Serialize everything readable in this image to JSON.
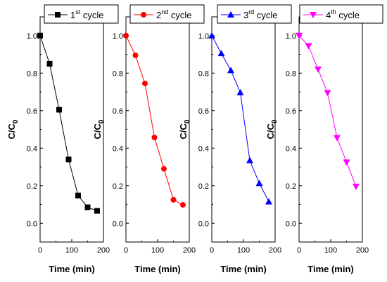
{
  "chart_data": [
    {
      "type": "line",
      "legend": {
        "label": "1",
        "sup": "st",
        "suffix": " cycle"
      },
      "color": "#000000",
      "marker": "square",
      "x": [
        0,
        30,
        60,
        90,
        120,
        150,
        180
      ],
      "y": [
        1.0,
        0.85,
        0.605,
        0.34,
        0.148,
        0.085,
        0.066
      ],
      "xlabel": "Time (min)",
      "ylabel": {
        "main": "C/C",
        "sub": "0"
      },
      "xlim": [
        0,
        200
      ],
      "ylim": [
        -0.1,
        1.1
      ],
      "xticks": [
        "0",
        "100",
        "200"
      ],
      "yticks": [
        "0.0",
        "0.2",
        "0.4",
        "0.6",
        "0.8",
        "1.0"
      ],
      "grid": false,
      "legend_position": "top"
    },
    {
      "type": "line",
      "legend": {
        "label": "2",
        "sup": "nd",
        "suffix": " cycle"
      },
      "color": "#ff0000",
      "marker": "circle",
      "x": [
        0,
        30,
        60,
        90,
        120,
        150,
        180
      ],
      "y": [
        1.0,
        0.895,
        0.745,
        0.457,
        0.29,
        0.125,
        0.098
      ],
      "xlabel": "Time (min)",
      "ylabel": {
        "main": "C/C",
        "sub": "0"
      },
      "xlim": [
        0,
        200
      ],
      "ylim": [
        -0.1,
        1.1
      ],
      "xticks": [
        "0",
        "100",
        "200"
      ],
      "yticks": [
        "0.0",
        "0.2",
        "0.4",
        "0.6",
        "0.8",
        "1.0"
      ],
      "grid": false,
      "legend_position": "top"
    },
    {
      "type": "line",
      "legend": {
        "label": "3",
        "sup": "rd",
        "suffix": " cycle"
      },
      "color": "#0000ff",
      "marker": "triangle-up",
      "x": [
        0,
        30,
        60,
        90,
        120,
        150,
        180
      ],
      "y": [
        1.0,
        0.905,
        0.815,
        0.697,
        0.335,
        0.213,
        0.115
      ],
      "xlabel": "Time (min)",
      "ylabel": {
        "main": "C/C",
        "sub": "0"
      },
      "xlim": [
        0,
        200
      ],
      "ylim": [
        -0.1,
        1.1
      ],
      "xticks": [
        "0",
        "100",
        "200"
      ],
      "yticks": [
        "0.0",
        "0.2",
        "0.4",
        "0.6",
        "0.8",
        "1.0"
      ],
      "grid": false,
      "legend_position": "top"
    },
    {
      "type": "line",
      "legend": {
        "label": "4",
        "sup": "th",
        "suffix": " cycle"
      },
      "color": "#ff00ff",
      "marker": "triangle-down",
      "x": [
        0,
        30,
        60,
        90,
        120,
        150,
        180
      ],
      "y": [
        1.0,
        0.945,
        0.82,
        0.695,
        0.455,
        0.325,
        0.196
      ],
      "xlabel": "Time (min)",
      "ylabel": {
        "main": "C/C",
        "sub": "0"
      },
      "xlim": [
        0,
        200
      ],
      "ylim": [
        -0.1,
        1.1
      ],
      "xticks": [
        "0",
        "100",
        "200"
      ],
      "yticks": [
        "0.0",
        "0.2",
        "0.4",
        "0.6",
        "0.8",
        "1.0"
      ],
      "grid": false,
      "legend_position": "top"
    }
  ]
}
